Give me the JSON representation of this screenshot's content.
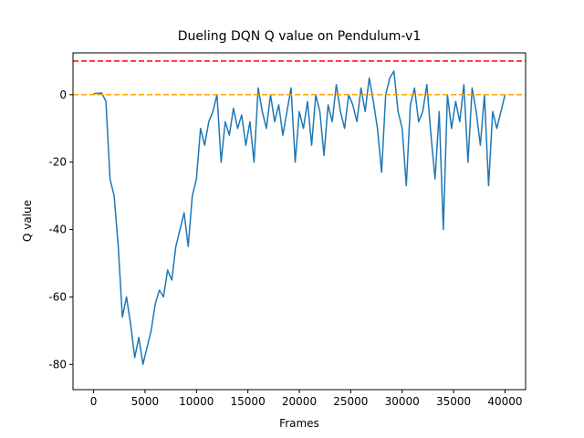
{
  "chart_data": {
    "type": "line",
    "title": "Dueling DQN Q value on Pendulum-v1",
    "x_label": "Frames",
    "y_label": "Q value",
    "x": [
      0,
      400,
      800,
      1200,
      1600,
      2000,
      2400,
      2800,
      3200,
      3600,
      4000,
      4400,
      4800,
      5200,
      5600,
      6000,
      6400,
      6800,
      7200,
      7600,
      8000,
      8400,
      8800,
      9200,
      9600,
      10000,
      10400,
      10800,
      11200,
      11600,
      12000,
      12400,
      12800,
      13200,
      13600,
      14000,
      14400,
      14800,
      15200,
      15600,
      16000,
      16400,
      16800,
      17200,
      17600,
      18000,
      18400,
      18800,
      19200,
      19600,
      20000,
      20400,
      20800,
      21200,
      21600,
      22000,
      22400,
      22800,
      23200,
      23600,
      24000,
      24400,
      24800,
      25200,
      25600,
      26000,
      26400,
      26800,
      27200,
      27600,
      28000,
      28400,
      28800,
      29200,
      29600,
      30000,
      30400,
      30800,
      31200,
      31600,
      32000,
      32400,
      32800,
      33200,
      33600,
      34000,
      34400,
      34800,
      35200,
      35600,
      36000,
      36400,
      36800,
      37200,
      37600,
      38000,
      38400,
      38800,
      39200,
      39600,
      40000
    ],
    "series": [
      {
        "name": "Q value",
        "color": "#1f77b4",
        "values": [
          0.3,
          0.4,
          0.5,
          -2,
          -25,
          -30,
          -45,
          -66,
          -60,
          -68,
          -78,
          -72,
          -80,
          -75,
          -70,
          -62,
          -58,
          -60,
          -52,
          -55,
          -45,
          -40,
          -35,
          -45,
          -30,
          -25,
          -10,
          -15,
          -8,
          -5,
          0,
          -20,
          -8,
          -12,
          -4,
          -10,
          -6,
          -15,
          -8,
          -20,
          2,
          -5,
          -10,
          0,
          -8,
          -3,
          -12,
          -5,
          2,
          -20,
          -5,
          -10,
          -2,
          -15,
          0,
          -5,
          -18,
          -3,
          -8,
          3,
          -5,
          -10,
          0,
          -3,
          -8,
          2,
          -5,
          5,
          -2,
          -10,
          -23,
          0,
          5,
          7,
          -5,
          -10,
          -27,
          -3,
          2,
          -8,
          -5,
          3,
          -12,
          -25,
          -5,
          -40,
          0,
          -10,
          -2,
          -8,
          3,
          -20,
          2,
          -5,
          -15,
          0,
          -27,
          -5,
          -10,
          -5,
          0
        ]
      }
    ],
    "hlines": [
      {
        "value": 10,
        "color": "#ff0000"
      },
      {
        "value": 0,
        "color": "#ffa500"
      }
    ],
    "xlim": [
      -2000,
      42000
    ],
    "ylim": [
      -87.5,
      12.4
    ],
    "xticks": [
      0,
      5000,
      10000,
      15000,
      20000,
      25000,
      30000,
      35000,
      40000
    ],
    "yticks": [
      -80,
      -60,
      -40,
      -20,
      0
    ]
  }
}
